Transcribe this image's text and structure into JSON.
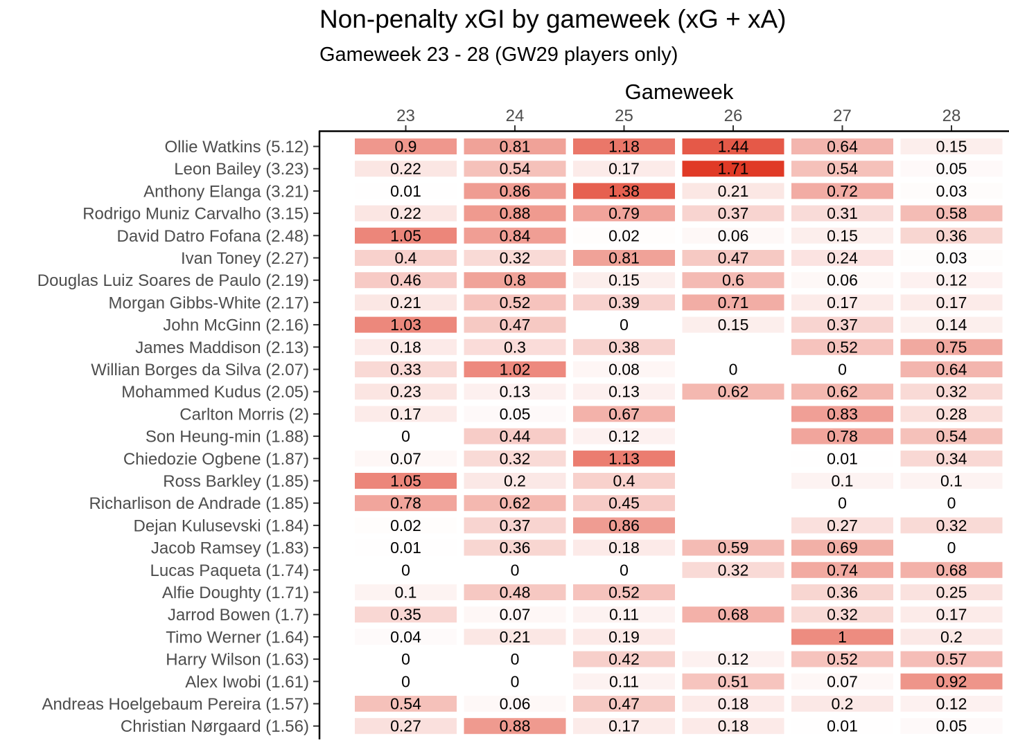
{
  "chart_data": {
    "type": "heatmap",
    "title": "Non-penalty xGI by gameweek (xG + xA)",
    "subtitle": "Gameweek 23 - 28 (GW29 players only)",
    "xlabel": "Gameweek",
    "ylabel": "",
    "x_position": "top",
    "color_scale": {
      "low": "#ffffff",
      "high": "#e03a26",
      "min": 0,
      "max": 1.71
    },
    "columns": [
      "23",
      "24",
      "25",
      "26",
      "27",
      "28"
    ],
    "rows": [
      {
        "label": "Ollie Watkins (5.12)",
        "values": [
          0.9,
          0.81,
          1.18,
          1.44,
          0.64,
          0.15
        ]
      },
      {
        "label": "Leon Bailey (3.23)",
        "values": [
          0.22,
          0.54,
          0.17,
          1.71,
          0.54,
          0.05
        ]
      },
      {
        "label": "Anthony Elanga (3.21)",
        "values": [
          0.01,
          0.86,
          1.38,
          0.21,
          0.72,
          0.03
        ]
      },
      {
        "label": "Rodrigo Muniz Carvalho (3.15)",
        "values": [
          0.22,
          0.88,
          0.79,
          0.37,
          0.31,
          0.58
        ]
      },
      {
        "label": "David Datro Fofana (2.48)",
        "values": [
          1.05,
          0.84,
          0.02,
          0.06,
          0.15,
          0.36
        ]
      },
      {
        "label": "Ivan Toney (2.27)",
        "values": [
          0.4,
          0.32,
          0.81,
          0.47,
          0.24,
          0.03
        ]
      },
      {
        "label": "Douglas Luiz Soares de Paulo (2.19)",
        "values": [
          0.46,
          0.8,
          0.15,
          0.6,
          0.06,
          0.12
        ]
      },
      {
        "label": "Morgan Gibbs-White (2.17)",
        "values": [
          0.21,
          0.52,
          0.39,
          0.71,
          0.17,
          0.17
        ]
      },
      {
        "label": "John McGinn (2.16)",
        "values": [
          1.03,
          0.47,
          0,
          0.15,
          0.37,
          0.14
        ]
      },
      {
        "label": "James Maddison (2.13)",
        "values": [
          0.18,
          0.3,
          0.38,
          null,
          0.52,
          0.75
        ]
      },
      {
        "label": "Willian Borges da Silva (2.07)",
        "values": [
          0.33,
          1.02,
          0.08,
          0,
          0,
          0.64
        ]
      },
      {
        "label": "Mohammed Kudus (2.05)",
        "values": [
          0.23,
          0.13,
          0.13,
          0.62,
          0.62,
          0.32
        ]
      },
      {
        "label": "Carlton Morris (2)",
        "values": [
          0.17,
          0.05,
          0.67,
          null,
          0.83,
          0.28
        ]
      },
      {
        "label": "Son Heung-min (1.88)",
        "values": [
          0,
          0.44,
          0.12,
          null,
          0.78,
          0.54
        ]
      },
      {
        "label": "Chiedozie Ogbene (1.87)",
        "values": [
          0.07,
          0.32,
          1.13,
          null,
          0.01,
          0.34
        ]
      },
      {
        "label": "Ross Barkley (1.85)",
        "values": [
          1.05,
          0.2,
          0.4,
          null,
          0.1,
          0.1
        ]
      },
      {
        "label": "Richarlison de Andrade (1.85)",
        "values": [
          0.78,
          0.62,
          0.45,
          null,
          0,
          0
        ]
      },
      {
        "label": "Dejan Kulusevski (1.84)",
        "values": [
          0.02,
          0.37,
          0.86,
          null,
          0.27,
          0.32
        ]
      },
      {
        "label": "Jacob Ramsey (1.83)",
        "values": [
          0.01,
          0.36,
          0.18,
          0.59,
          0.69,
          0
        ]
      },
      {
        "label": "Lucas Paqueta (1.74)",
        "values": [
          0,
          0,
          0,
          0.32,
          0.74,
          0.68
        ]
      },
      {
        "label": "Alfie Doughty (1.71)",
        "values": [
          0.1,
          0.48,
          0.52,
          null,
          0.36,
          0.25
        ]
      },
      {
        "label": "Jarrod Bowen (1.7)",
        "values": [
          0.35,
          0.07,
          0.11,
          0.68,
          0.32,
          0.17
        ]
      },
      {
        "label": "Timo Werner (1.64)",
        "values": [
          0.04,
          0.21,
          0.19,
          null,
          1,
          0.2
        ]
      },
      {
        "label": "Harry Wilson (1.63)",
        "values": [
          0,
          0,
          0.42,
          0.12,
          0.52,
          0.57
        ]
      },
      {
        "label": "Alex Iwobi (1.61)",
        "values": [
          0,
          0,
          0.11,
          0.51,
          0.07,
          0.92
        ]
      },
      {
        "label": "Andreas Hoelgebaum Pereira (1.57)",
        "values": [
          0.54,
          0.06,
          0.47,
          0.18,
          0.2,
          0.12
        ]
      },
      {
        "label": "Christian Nørgaard (1.56)",
        "values": [
          0.27,
          0.88,
          0.17,
          0.18,
          0.01,
          0.05
        ]
      }
    ]
  }
}
